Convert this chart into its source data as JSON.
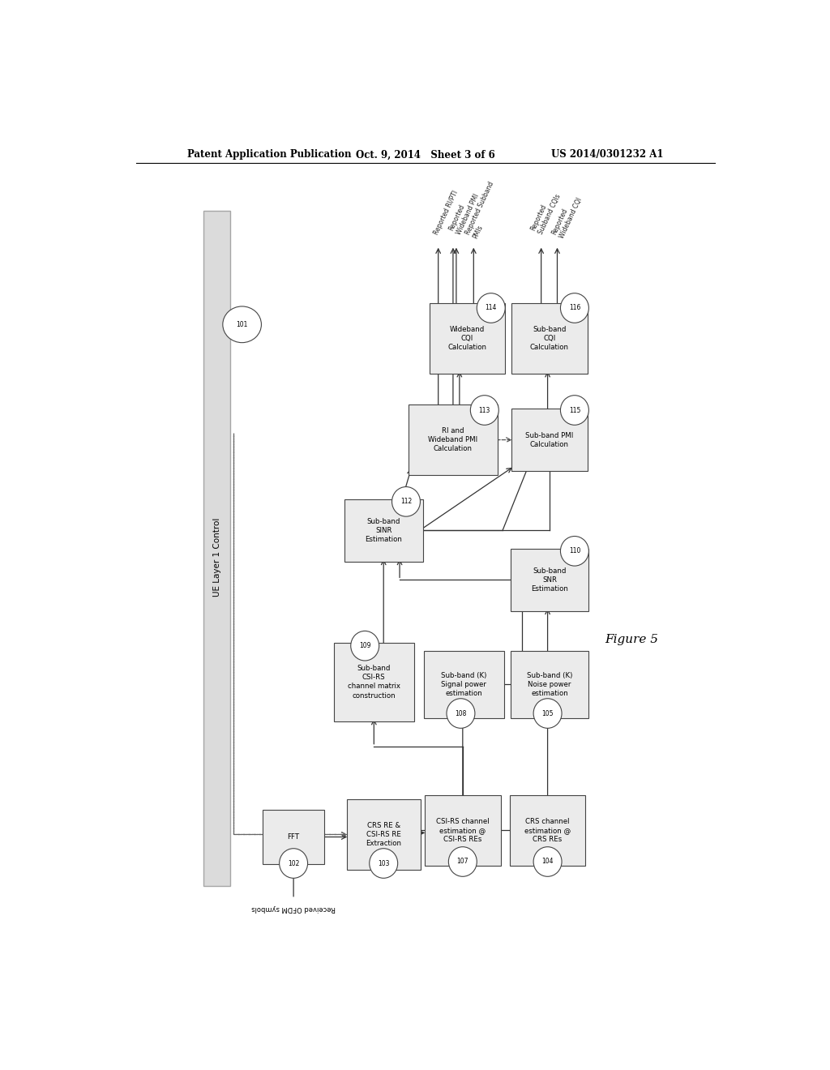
{
  "header_left": "Patent Application Publication",
  "header_mid": "Oct. 9, 2014   Sheet 3 of 6",
  "header_right": "US 2014/0301232 A1",
  "figure_label": "Figure 5",
  "background_color": "#ffffff",
  "ue_layer_label": "UE Layer 1 Control"
}
